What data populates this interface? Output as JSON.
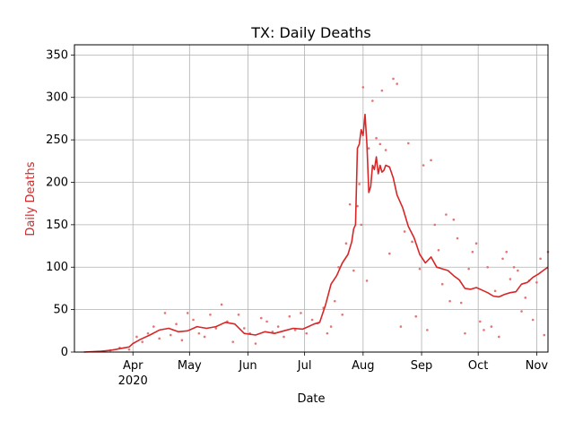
{
  "chart_data": {
    "type": "line",
    "title": "TX: Daily Deaths",
    "xlabel": "Date",
    "ylabel": "Daily Deaths",
    "ylim": [
      0,
      362
    ],
    "xlim": [
      "2020-03-01",
      "2020-11-07"
    ],
    "grid": true,
    "colors": {
      "line": "#d62728",
      "points": "#e06666",
      "ylabel": "#d62728"
    },
    "yticks": [
      0,
      50,
      100,
      150,
      200,
      250,
      300,
      350
    ],
    "xticks": [
      {
        "date": "2020-04-01",
        "label": "Apr",
        "sublabel": "2020"
      },
      {
        "date": "2020-05-01",
        "label": "May",
        "sublabel": ""
      },
      {
        "date": "2020-06-01",
        "label": "Jun",
        "sublabel": ""
      },
      {
        "date": "2020-07-01",
        "label": "Jul",
        "sublabel": ""
      },
      {
        "date": "2020-08-01",
        "label": "Aug",
        "sublabel": ""
      },
      {
        "date": "2020-09-01",
        "label": "Sep",
        "sublabel": ""
      },
      {
        "date": "2020-10-01",
        "label": "Oct",
        "sublabel": ""
      },
      {
        "date": "2020-11-01",
        "label": "Nov",
        "sublabel": ""
      }
    ],
    "series": [
      {
        "kind": "line",
        "x": [
          "2020-03-06",
          "2020-03-15",
          "2020-03-20",
          "2020-03-25",
          "2020-03-30",
          "2020-04-01",
          "2020-04-05",
          "2020-04-10",
          "2020-04-15",
          "2020-04-20",
          "2020-04-25",
          "2020-04-30",
          "2020-05-05",
          "2020-05-10",
          "2020-05-15",
          "2020-05-20",
          "2020-05-25",
          "2020-05-30",
          "2020-06-05",
          "2020-06-10",
          "2020-06-15",
          "2020-06-20",
          "2020-06-25",
          "2020-06-30",
          "2020-07-03",
          "2020-07-06",
          "2020-07-09",
          "2020-07-12",
          "2020-07-15",
          "2020-07-18",
          "2020-07-21",
          "2020-07-24",
          "2020-07-26",
          "2020-07-27",
          "2020-07-28",
          "2020-07-29",
          "2020-07-30",
          "2020-07-31",
          "2020-08-01",
          "2020-08-02",
          "2020-08-03",
          "2020-08-04",
          "2020-08-05",
          "2020-08-06",
          "2020-08-07",
          "2020-08-08",
          "2020-08-09",
          "2020-08-10",
          "2020-08-11",
          "2020-08-12",
          "2020-08-13",
          "2020-08-15",
          "2020-08-17",
          "2020-08-19",
          "2020-08-22",
          "2020-08-25",
          "2020-08-28",
          "2020-08-31",
          "2020-09-03",
          "2020-09-06",
          "2020-09-09",
          "2020-09-12",
          "2020-09-15",
          "2020-09-18",
          "2020-09-21",
          "2020-09-24",
          "2020-09-27",
          "2020-09-30",
          "2020-10-03",
          "2020-10-06",
          "2020-10-09",
          "2020-10-12",
          "2020-10-15",
          "2020-10-18",
          "2020-10-21",
          "2020-10-24",
          "2020-10-27",
          "2020-10-30",
          "2020-11-02",
          "2020-11-05",
          "2020-11-07"
        ],
        "y": [
          0,
          1,
          2,
          4,
          6,
          10,
          15,
          20,
          26,
          28,
          24,
          25,
          30,
          28,
          30,
          35,
          33,
          22,
          20,
          24,
          22,
          25,
          28,
          27,
          30,
          33,
          35,
          55,
          80,
          90,
          105,
          115,
          130,
          145,
          150,
          240,
          245,
          262,
          255,
          280,
          245,
          188,
          195,
          220,
          215,
          230,
          210,
          220,
          212,
          214,
          220,
          218,
          205,
          185,
          170,
          148,
          135,
          115,
          105,
          112,
          100,
          98,
          96,
          90,
          85,
          75,
          74,
          76,
          73,
          70,
          66,
          65,
          68,
          70,
          71,
          80,
          82,
          88,
          92,
          97,
          100
        ]
      },
      {
        "kind": "scatter",
        "x": [
          "2020-03-20",
          "2020-03-25",
          "2020-03-30",
          "2020-04-03",
          "2020-04-06",
          "2020-04-09",
          "2020-04-12",
          "2020-04-15",
          "2020-04-18",
          "2020-04-21",
          "2020-04-24",
          "2020-04-27",
          "2020-04-30",
          "2020-05-03",
          "2020-05-06",
          "2020-05-09",
          "2020-05-12",
          "2020-05-15",
          "2020-05-18",
          "2020-05-21",
          "2020-05-24",
          "2020-05-27",
          "2020-05-30",
          "2020-06-02",
          "2020-06-05",
          "2020-06-08",
          "2020-06-11",
          "2020-06-14",
          "2020-06-17",
          "2020-06-20",
          "2020-06-23",
          "2020-06-26",
          "2020-06-29",
          "2020-07-02",
          "2020-07-05",
          "2020-07-08",
          "2020-07-11",
          "2020-07-13",
          "2020-07-15",
          "2020-07-17",
          "2020-07-19",
          "2020-07-21",
          "2020-07-23",
          "2020-07-25",
          "2020-07-27",
          "2020-07-29",
          "2020-07-30",
          "2020-07-31",
          "2020-08-01",
          "2020-08-03",
          "2020-08-04",
          "2020-08-06",
          "2020-08-08",
          "2020-08-10",
          "2020-08-11",
          "2020-08-13",
          "2020-08-15",
          "2020-08-17",
          "2020-08-19",
          "2020-08-21",
          "2020-08-23",
          "2020-08-25",
          "2020-08-27",
          "2020-08-29",
          "2020-08-31",
          "2020-09-02",
          "2020-09-04",
          "2020-09-06",
          "2020-09-08",
          "2020-09-10",
          "2020-09-12",
          "2020-09-14",
          "2020-09-16",
          "2020-09-18",
          "2020-09-20",
          "2020-09-22",
          "2020-09-24",
          "2020-09-26",
          "2020-09-28",
          "2020-09-30",
          "2020-10-02",
          "2020-10-04",
          "2020-10-06",
          "2020-10-08",
          "2020-10-10",
          "2020-10-12",
          "2020-10-14",
          "2020-10-16",
          "2020-10-18",
          "2020-10-20",
          "2020-10-22",
          "2020-10-24",
          "2020-10-26",
          "2020-10-28",
          "2020-10-30",
          "2020-11-01",
          "2020-11-03",
          "2020-11-05",
          "2020-11-07"
        ],
        "y": [
          2,
          5,
          3,
          18,
          12,
          22,
          30,
          16,
          46,
          20,
          33,
          14,
          46,
          38,
          22,
          18,
          44,
          28,
          56,
          36,
          12,
          44,
          28,
          22,
          10,
          40,
          36,
          24,
          30,
          18,
          42,
          26,
          46,
          22,
          38,
          34,
          52,
          22,
          30,
          60,
          100,
          44,
          128,
          174,
          96,
          172,
          198,
          150,
          312,
          84,
          240,
          296,
          252,
          245,
          308,
          238,
          116,
          322,
          316,
          30,
          142,
          246,
          130,
          42,
          98,
          220,
          26,
          226,
          150,
          120,
          80,
          162,
          60,
          156,
          134,
          58,
          22,
          98,
          118,
          128,
          36,
          26,
          100,
          30,
          72,
          18,
          110,
          118,
          86,
          100,
          96,
          48,
          64,
          84,
          38,
          82,
          110,
          20,
          118
        ]
      }
    ]
  }
}
